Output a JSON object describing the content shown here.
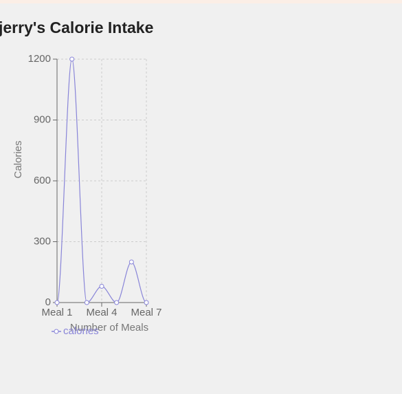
{
  "chart_data": {
    "type": "line",
    "title": "jerry's Calorie Intake",
    "x_label": "Number of Meals",
    "y_label": "Calories",
    "categories": [
      "Meal 1",
      null,
      null,
      "Meal 4",
      null,
      null,
      "Meal 7"
    ],
    "series": [
      {
        "name": "calories",
        "color": "#8884d8",
        "values": [
          0,
          1200,
          0,
          80,
          0,
          200,
          0
        ]
      }
    ],
    "ylim": [
      0,
      1200
    ],
    "yticks": [
      0,
      300,
      600,
      900,
      1200
    ],
    "grid": true,
    "legend": "bottom"
  }
}
